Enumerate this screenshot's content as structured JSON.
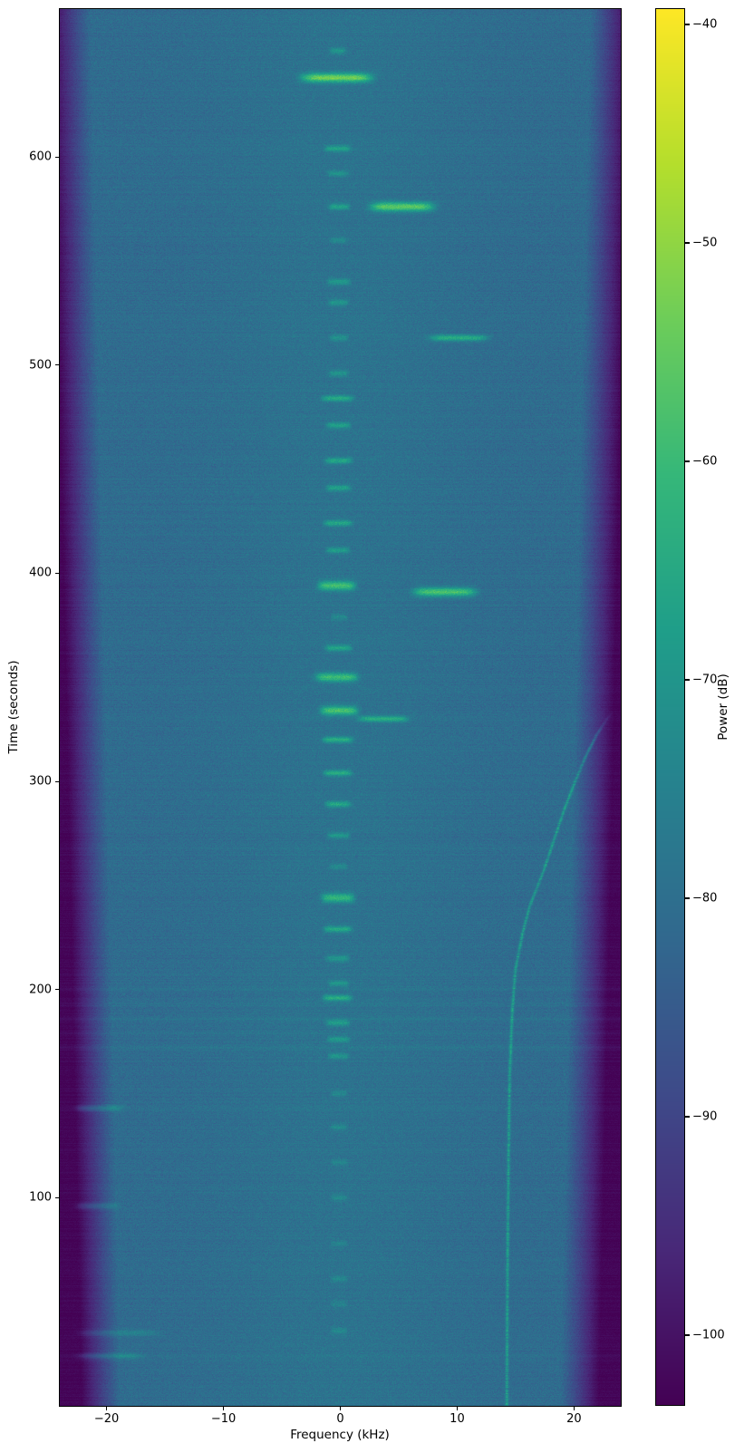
{
  "chart_data": {
    "type": "heatmap",
    "subtype": "spectrogram",
    "title": "",
    "xlabel": "Frequency (kHz)",
    "ylabel": "Time (seconds)",
    "colorbar_label": "Power (dB)",
    "colormap": "viridis",
    "xlim": [
      -24,
      24
    ],
    "ylim": [
      0,
      671
    ],
    "power_range_db": [
      -103.2,
      -39.3
    ],
    "x_ticks": [
      {
        "v": -20,
        "label": "−20"
      },
      {
        "v": -10,
        "label": "−10"
      },
      {
        "v": 0,
        "label": "0"
      },
      {
        "v": 10,
        "label": "10"
      },
      {
        "v": 20,
        "label": "20"
      }
    ],
    "y_ticks": [
      {
        "v": 100,
        "label": "100"
      },
      {
        "v": 200,
        "label": "200"
      },
      {
        "v": 300,
        "label": "300"
      },
      {
        "v": 400,
        "label": "400"
      },
      {
        "v": 500,
        "label": "500"
      },
      {
        "v": 600,
        "label": "600"
      }
    ],
    "colorbar_ticks": [
      {
        "v": -40,
        "label": "−40"
      },
      {
        "v": -50,
        "label": "−50"
      },
      {
        "v": -60,
        "label": "−60"
      },
      {
        "v": -70,
        "label": "−70"
      },
      {
        "v": -80,
        "label": "−80"
      },
      {
        "v": -90,
        "label": "−90"
      },
      {
        "v": -100,
        "label": "−100"
      }
    ],
    "noise_floor_db": -81,
    "center_boost_db": 2.0,
    "passband_halfwidth_khz": {
      "at_t0": 18.8,
      "at_tmax": 21.4
    },
    "carrier_bursts": [
      {
        "t": 651,
        "f0": -0.9,
        "f1": 0.5,
        "a": 9
      },
      {
        "t": 638,
        "f0": -3.3,
        "f1": 2.7,
        "a": 26
      },
      {
        "t": 604,
        "f0": -1.3,
        "f1": 0.9,
        "a": 12
      },
      {
        "t": 592,
        "f0": -1.1,
        "f1": 0.7,
        "a": 8
      },
      {
        "t": 576,
        "f0": -1.0,
        "f1": 0.8,
        "a": 12
      },
      {
        "t": 560,
        "f0": -0.9,
        "f1": 0.6,
        "a": 6
      },
      {
        "t": 540,
        "f0": -1.1,
        "f1": 0.9,
        "a": 10
      },
      {
        "t": 530,
        "f0": -1.0,
        "f1": 0.7,
        "a": 9
      },
      {
        "t": 513,
        "f0": -0.9,
        "f1": 0.7,
        "a": 8
      },
      {
        "t": 496,
        "f0": -1.0,
        "f1": 0.7,
        "a": 9
      },
      {
        "t": 484,
        "f0": -1.6,
        "f1": 1.1,
        "a": 14
      },
      {
        "t": 471,
        "f0": -1.2,
        "f1": 0.9,
        "a": 12
      },
      {
        "t": 454,
        "f0": -1.3,
        "f1": 1.0,
        "a": 13
      },
      {
        "t": 441,
        "f0": -1.2,
        "f1": 0.9,
        "a": 12
      },
      {
        "t": 424,
        "f0": -1.4,
        "f1": 1.0,
        "a": 13
      },
      {
        "t": 411,
        "f0": -1.2,
        "f1": 0.8,
        "a": 11
      },
      {
        "t": 394,
        "f0": -1.9,
        "f1": 1.3,
        "a": 21
      },
      {
        "t": 379,
        "f0": -0.8,
        "f1": 0.6,
        "a": 6
      },
      {
        "t": 364,
        "f0": -1.3,
        "f1": 1.0,
        "a": 13
      },
      {
        "t": 350,
        "f0": -2.1,
        "f1": 1.5,
        "a": 19
      },
      {
        "t": 334,
        "f0": -1.7,
        "f1": 1.5,
        "a": 21
      },
      {
        "t": 320,
        "f0": -1.5,
        "f1": 1.1,
        "a": 15
      },
      {
        "t": 304,
        "f0": -1.4,
        "f1": 1.0,
        "a": 14
      },
      {
        "t": 289,
        "f0": -1.3,
        "f1": 0.9,
        "a": 13
      },
      {
        "t": 274,
        "f0": -1.1,
        "f1": 0.8,
        "a": 10
      },
      {
        "t": 259,
        "f0": -0.9,
        "f1": 0.6,
        "a": 6
      },
      {
        "t": 244,
        "f0": -1.6,
        "f1": 1.2,
        "a": 18
      },
      {
        "t": 229,
        "f0": -1.4,
        "f1": 1.0,
        "a": 14
      },
      {
        "t": 215,
        "f0": -1.2,
        "f1": 0.8,
        "a": 10
      },
      {
        "t": 203,
        "f0": -1.0,
        "f1": 0.7,
        "a": 9
      },
      {
        "t": 196,
        "f0": -1.5,
        "f1": 1.0,
        "a": 15
      },
      {
        "t": 184,
        "f0": -1.2,
        "f1": 0.8,
        "a": 11
      },
      {
        "t": 176,
        "f0": -1.1,
        "f1": 0.8,
        "a": 10
      },
      {
        "t": 168,
        "f0": -1.0,
        "f1": 0.7,
        "a": 9
      },
      {
        "t": 150,
        "f0": -0.8,
        "f1": 0.6,
        "a": 6
      },
      {
        "t": 134,
        "f0": -0.8,
        "f1": 0.6,
        "a": 6
      },
      {
        "t": 117,
        "f0": -0.8,
        "f1": 0.6,
        "a": 5
      },
      {
        "t": 100,
        "f0": -0.8,
        "f1": 0.6,
        "a": 6
      },
      {
        "t": 78,
        "f0": -0.8,
        "f1": 0.6,
        "a": 5
      },
      {
        "t": 61,
        "f0": -0.8,
        "f1": 0.6,
        "a": 6
      },
      {
        "t": 49,
        "f0": -0.8,
        "f1": 0.6,
        "a": 5
      },
      {
        "t": 36,
        "f0": -0.8,
        "f1": 0.6,
        "a": 6
      }
    ],
    "off_center_streaks": [
      {
        "t": 576,
        "f0": 2.6,
        "f1": 8.0,
        "a": 24
      },
      {
        "t": 513,
        "f0": 7.7,
        "f1": 12.6,
        "a": 16
      },
      {
        "t": 391,
        "f0": 6.3,
        "f1": 11.6,
        "a": 22
      },
      {
        "t": 330,
        "f0": 1.6,
        "f1": 5.8,
        "a": 15
      }
    ],
    "edge_artifacts": [
      {
        "t": 143,
        "f0": -22.6,
        "f1": -18.6,
        "a": 8
      },
      {
        "t": 96,
        "f0": -22.6,
        "f1": -19.0,
        "a": 7
      },
      {
        "t": 35,
        "f0": -22.3,
        "f1": -15.5,
        "a": 6
      },
      {
        "t": 24,
        "f0": -22.4,
        "f1": -17.0,
        "a": 7
      }
    ],
    "noise_lines": [
      {
        "t": 24,
        "a": 1.2
      },
      {
        "t": 143,
        "a": 0.9
      },
      {
        "t": 172,
        "a": 1.9
      },
      {
        "t": 179,
        "a": 1.0
      },
      {
        "t": 186,
        "a": 1.6
      },
      {
        "t": 193,
        "a": 1.1
      },
      {
        "t": 197,
        "a": -1.0
      },
      {
        "t": 200,
        "a": 1.6
      },
      {
        "t": 207,
        "a": 1.1
      },
      {
        "t": 268,
        "a": 0.9
      },
      {
        "t": 330,
        "a": 0.7
      },
      {
        "t": 445,
        "a": 0.8
      },
      {
        "t": 514,
        "a": 0.6
      },
      {
        "t": 592,
        "a": 0.6
      },
      {
        "t": 638,
        "a": 0.6
      }
    ],
    "doppler_track": {
      "amp_db": 11,
      "points": [
        [
          0,
          14.25
        ],
        [
          40,
          14.28
        ],
        [
          80,
          14.33
        ],
        [
          120,
          14.4
        ],
        [
          160,
          14.5
        ],
        [
          190,
          14.72
        ],
        [
          210,
          15.0
        ],
        [
          227,
          15.6
        ],
        [
          240,
          16.2
        ],
        [
          257,
          17.4
        ],
        [
          272,
          18.3
        ],
        [
          287,
          19.2
        ],
        [
          300,
          20.1
        ],
        [
          312,
          21.0
        ],
        [
          322,
          21.9
        ],
        [
          330,
          22.8
        ],
        [
          334,
          23.4
        ]
      ]
    },
    "accent_colors": {
      "viridis_low": "#440154",
      "viridis_mid": "#21918c",
      "viridis_high": "#fde725"
    }
  }
}
